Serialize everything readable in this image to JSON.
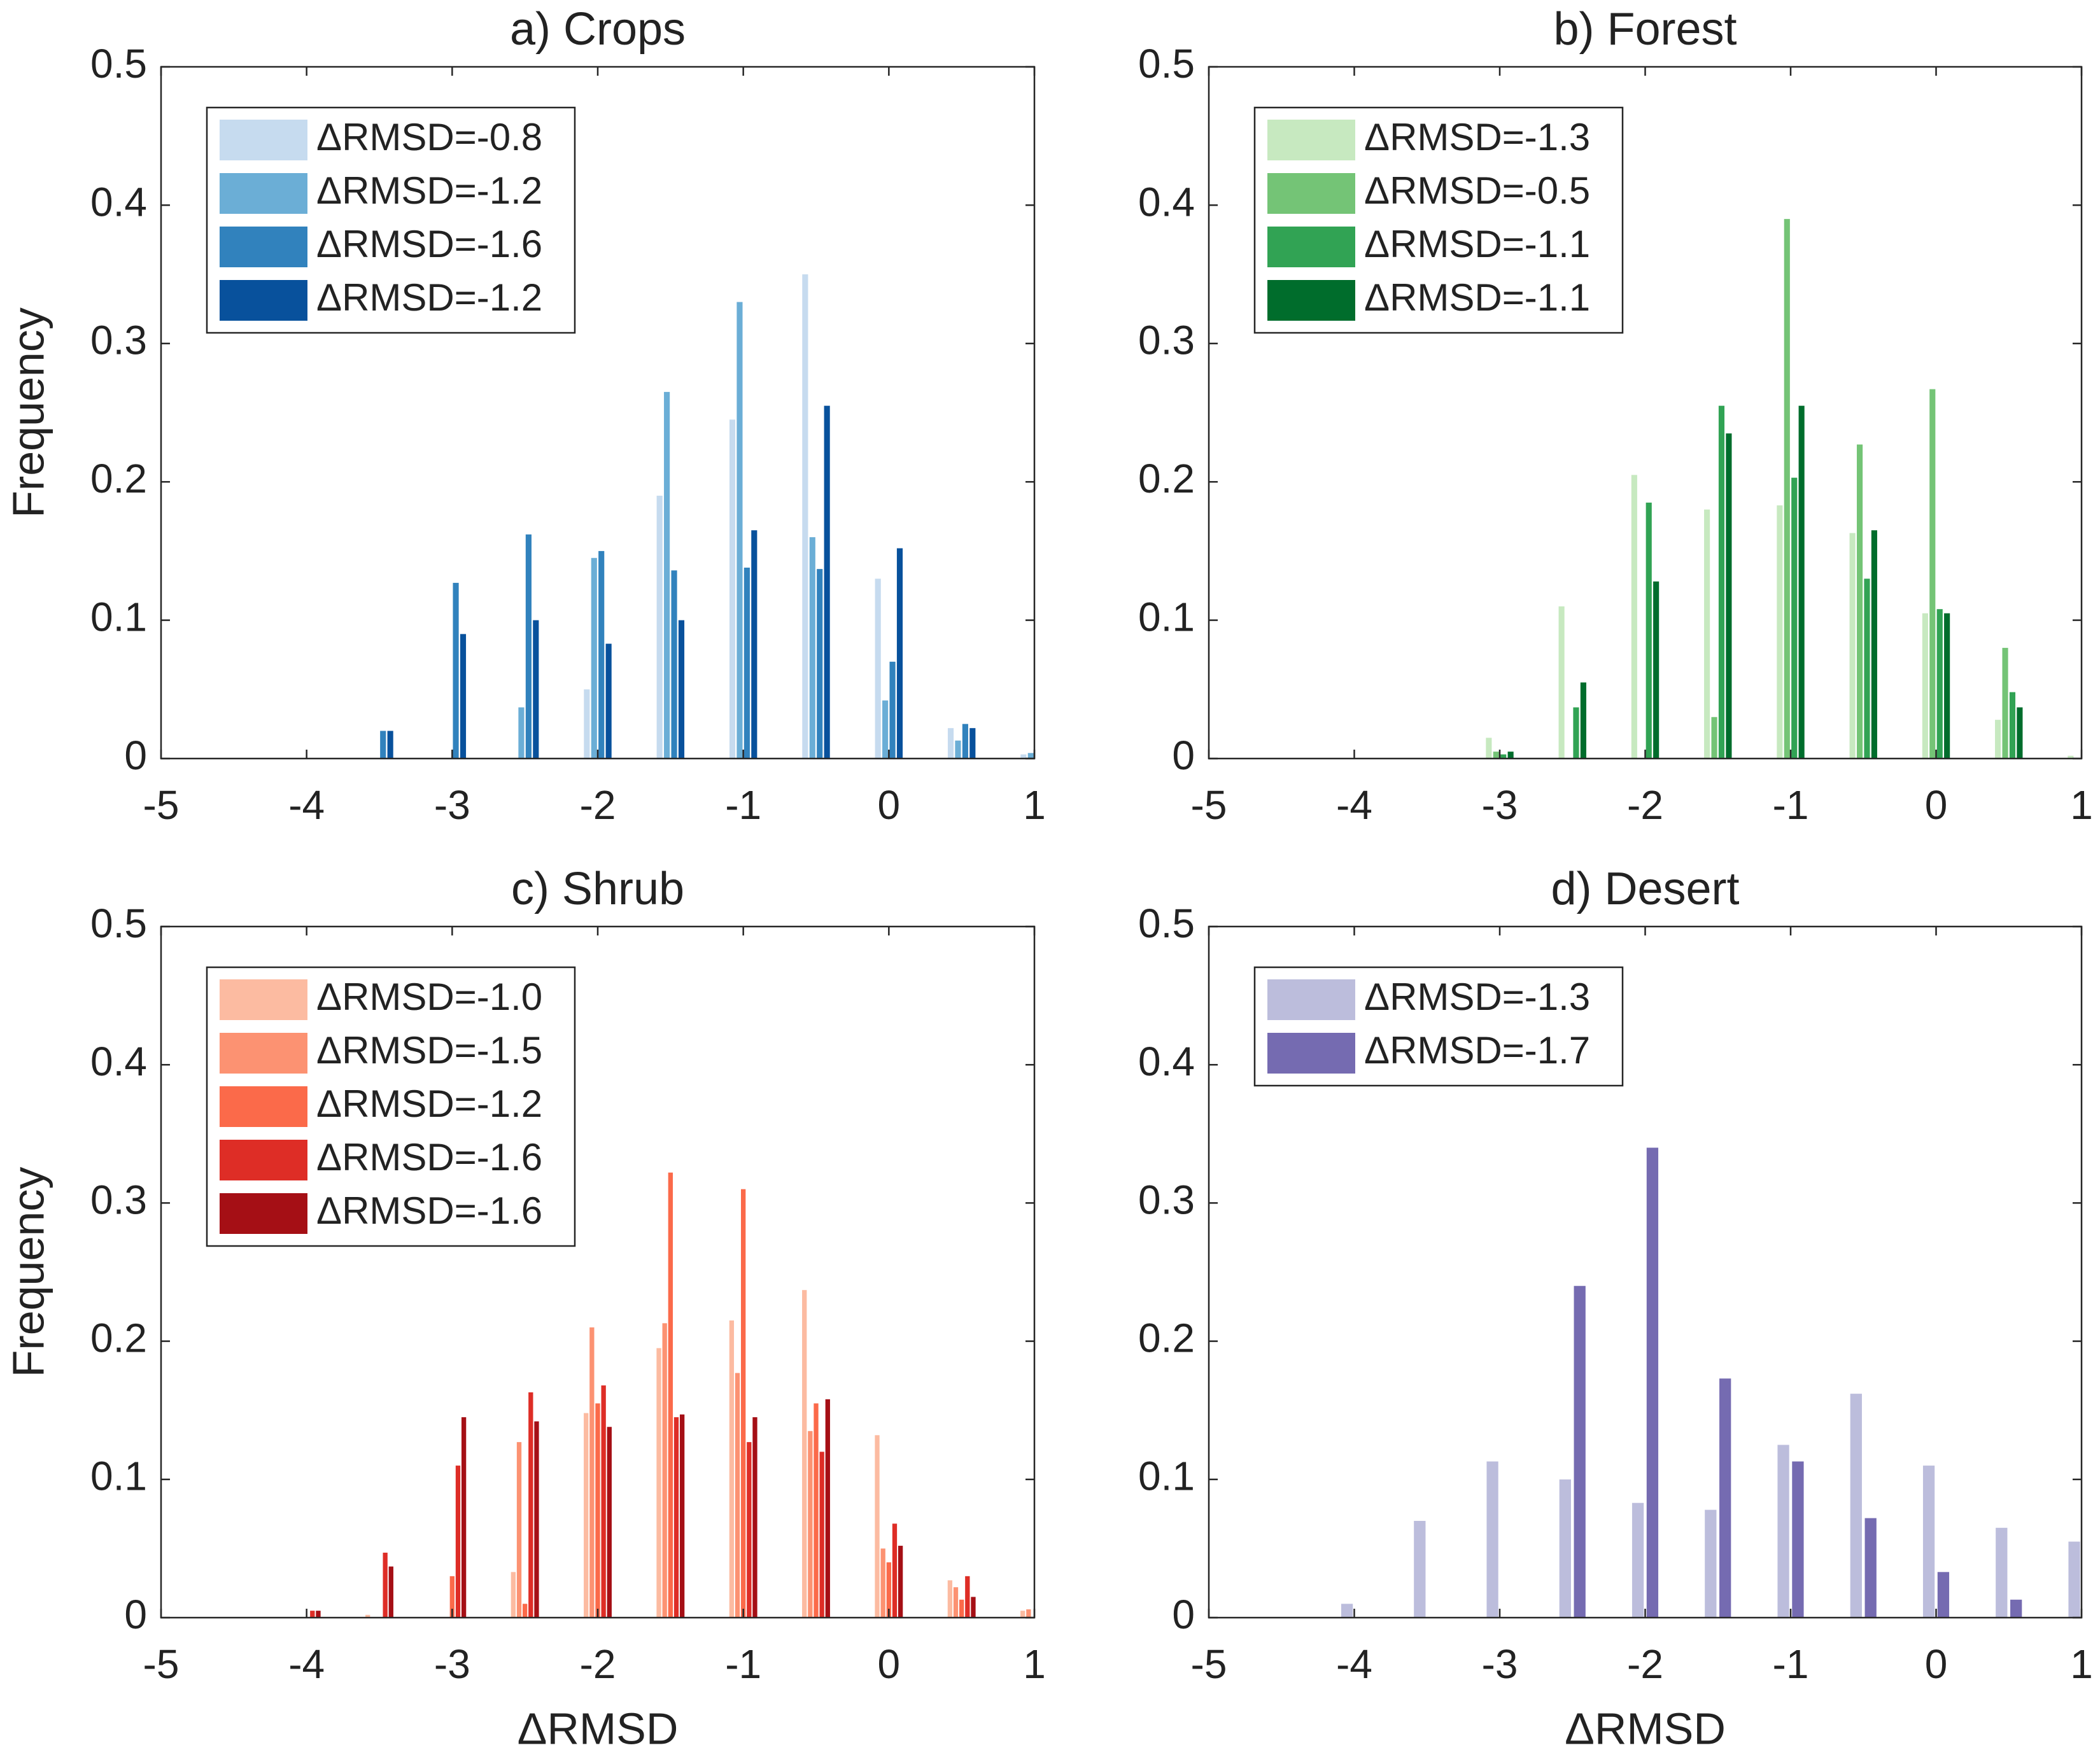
{
  "chart_data": [
    {
      "type": "bar",
      "title": "a) Crops",
      "ylabel": "Frequency",
      "x": [
        -4,
        -3.5,
        -3,
        -2.5,
        -2,
        -1.5,
        -1,
        -0.5,
        0,
        0.5,
        1
      ],
      "series": [
        {
          "name": "ΔRMSD=-0.8",
          "color": "#c6dbef",
          "values": [
            0,
            0,
            0,
            0,
            0.05,
            0.19,
            0.245,
            0.35,
            0.13,
            0.022,
            0.003
          ]
        },
        {
          "name": "ΔRMSD=-1.2",
          "color": "#6baed6",
          "values": [
            0,
            0,
            0,
            0.037,
            0.145,
            0.265,
            0.33,
            0.16,
            0.042,
            0.013,
            0.004
          ]
        },
        {
          "name": "ΔRMSD=-1.6",
          "color": "#3182bd",
          "values": [
            0,
            0.02,
            0.127,
            0.162,
            0.15,
            0.136,
            0.138,
            0.137,
            0.07,
            0.025,
            0
          ]
        },
        {
          "name": "ΔRMSD=-1.2",
          "color": "#08519c",
          "values": [
            0,
            0.02,
            0.09,
            0.1,
            0.083,
            0.1,
            0.165,
            0.255,
            0.152,
            0.022,
            0
          ]
        }
      ],
      "xlim": [
        -5,
        1
      ],
      "xticks": [
        -5,
        -4,
        -3,
        -2,
        -1,
        0,
        1
      ],
      "ylim": [
        0,
        0.5
      ],
      "yticks": [
        0,
        0.1,
        0.2,
        0.3,
        0.4,
        0.5
      ],
      "legend": "upper left"
    },
    {
      "type": "bar",
      "title": "b) Forest",
      "x": [
        -4,
        -3.5,
        -3,
        -2.5,
        -2,
        -1.5,
        -1,
        -0.5,
        0,
        0.5,
        1
      ],
      "series": [
        {
          "name": "ΔRMSD=-1.3",
          "color": "#c7e9c0",
          "values": [
            0,
            0,
            0.015,
            0.11,
            0.205,
            0.18,
            0.183,
            0.163,
            0.105,
            0.028,
            0.002
          ]
        },
        {
          "name": "ΔRMSD=-0.5",
          "color": "#74c476",
          "values": [
            0,
            0,
            0.005,
            0,
            0,
            0.03,
            0.39,
            0.227,
            0.267,
            0.08,
            0
          ]
        },
        {
          "name": "ΔRMSD=-1.1",
          "color": "#31a354",
          "values": [
            0,
            0,
            0.003,
            0.037,
            0.185,
            0.255,
            0.203,
            0.13,
            0.108,
            0.048,
            0
          ]
        },
        {
          "name": "ΔRMSD=-1.1",
          "color": "#006d2c",
          "values": [
            0,
            0,
            0.005,
            0.055,
            0.128,
            0.235,
            0.255,
            0.165,
            0.105,
            0.037,
            0
          ]
        }
      ],
      "xlim": [
        -5,
        1
      ],
      "xticks": [
        -5,
        -4,
        -3,
        -2,
        -1,
        0,
        1
      ],
      "ylim": [
        0,
        0.5
      ],
      "yticks": [
        0,
        0.1,
        0.2,
        0.3,
        0.4,
        0.5
      ],
      "legend": "upper left"
    },
    {
      "type": "bar",
      "title": "c) Shrub",
      "ylabel": "Frequency",
      "xlabel": "ΔRMSD",
      "x": [
        -4,
        -3.5,
        -3,
        -2.5,
        -2,
        -1.5,
        -1,
        -0.5,
        0,
        0.5,
        1
      ],
      "series": [
        {
          "name": "ΔRMSD=-1.0",
          "color": "#fcbba1",
          "values": [
            0,
            0.002,
            0,
            0.033,
            0.148,
            0.195,
            0.215,
            0.237,
            0.132,
            0.027,
            0.005
          ]
        },
        {
          "name": "ΔRMSD=-1.5",
          "color": "#fc9272",
          "values": [
            0,
            0,
            0,
            0.127,
            0.21,
            0.213,
            0.177,
            0.135,
            0.05,
            0.022,
            0.006
          ]
        },
        {
          "name": "ΔRMSD=-1.2",
          "color": "#fb6a4a",
          "values": [
            0,
            0,
            0.03,
            0.01,
            0.155,
            0.322,
            0.31,
            0.155,
            0.04,
            0.013,
            0
          ]
        },
        {
          "name": "ΔRMSD=-1.6",
          "color": "#de2d26",
          "values": [
            0.005,
            0.047,
            0.11,
            0.163,
            0.168,
            0.145,
            0.127,
            0.12,
            0.068,
            0.03,
            0
          ]
        },
        {
          "name": "ΔRMSD=-1.6",
          "color": "#a50f15",
          "values": [
            0.005,
            0.037,
            0.145,
            0.142,
            0.138,
            0.147,
            0.145,
            0.158,
            0.052,
            0.015,
            0
          ]
        }
      ],
      "xlim": [
        -5,
        1
      ],
      "xticks": [
        -5,
        -4,
        -3,
        -2,
        -1,
        0,
        1
      ],
      "ylim": [
        0,
        0.5
      ],
      "yticks": [
        0,
        0.1,
        0.2,
        0.3,
        0.4,
        0.5
      ],
      "legend": "upper left"
    },
    {
      "type": "bar",
      "title": "d) Desert",
      "xlabel": "ΔRMSD",
      "x": [
        -4,
        -3.5,
        -3,
        -2.5,
        -2,
        -1.5,
        -1,
        -0.5,
        0,
        0.5,
        1
      ],
      "series": [
        {
          "name": "ΔRMSD=-1.3",
          "color": "#bcbddc",
          "values": [
            0.01,
            0.07,
            0.113,
            0.1,
            0.083,
            0.078,
            0.125,
            0.162,
            0.11,
            0.065,
            0.055
          ]
        },
        {
          "name": "ΔRMSD=-1.7",
          "color": "#756bb1",
          "values": [
            0,
            0,
            0,
            0.24,
            0.34,
            0.173,
            0.113,
            0.072,
            0.033,
            0.013,
            0
          ]
        }
      ],
      "xlim": [
        -5,
        1
      ],
      "xticks": [
        -5,
        -4,
        -3,
        -2,
        -1,
        0,
        1
      ],
      "ylim": [
        0,
        0.5
      ],
      "yticks": [
        0,
        0.1,
        0.2,
        0.3,
        0.4,
        0.5
      ],
      "legend": "upper left"
    }
  ]
}
